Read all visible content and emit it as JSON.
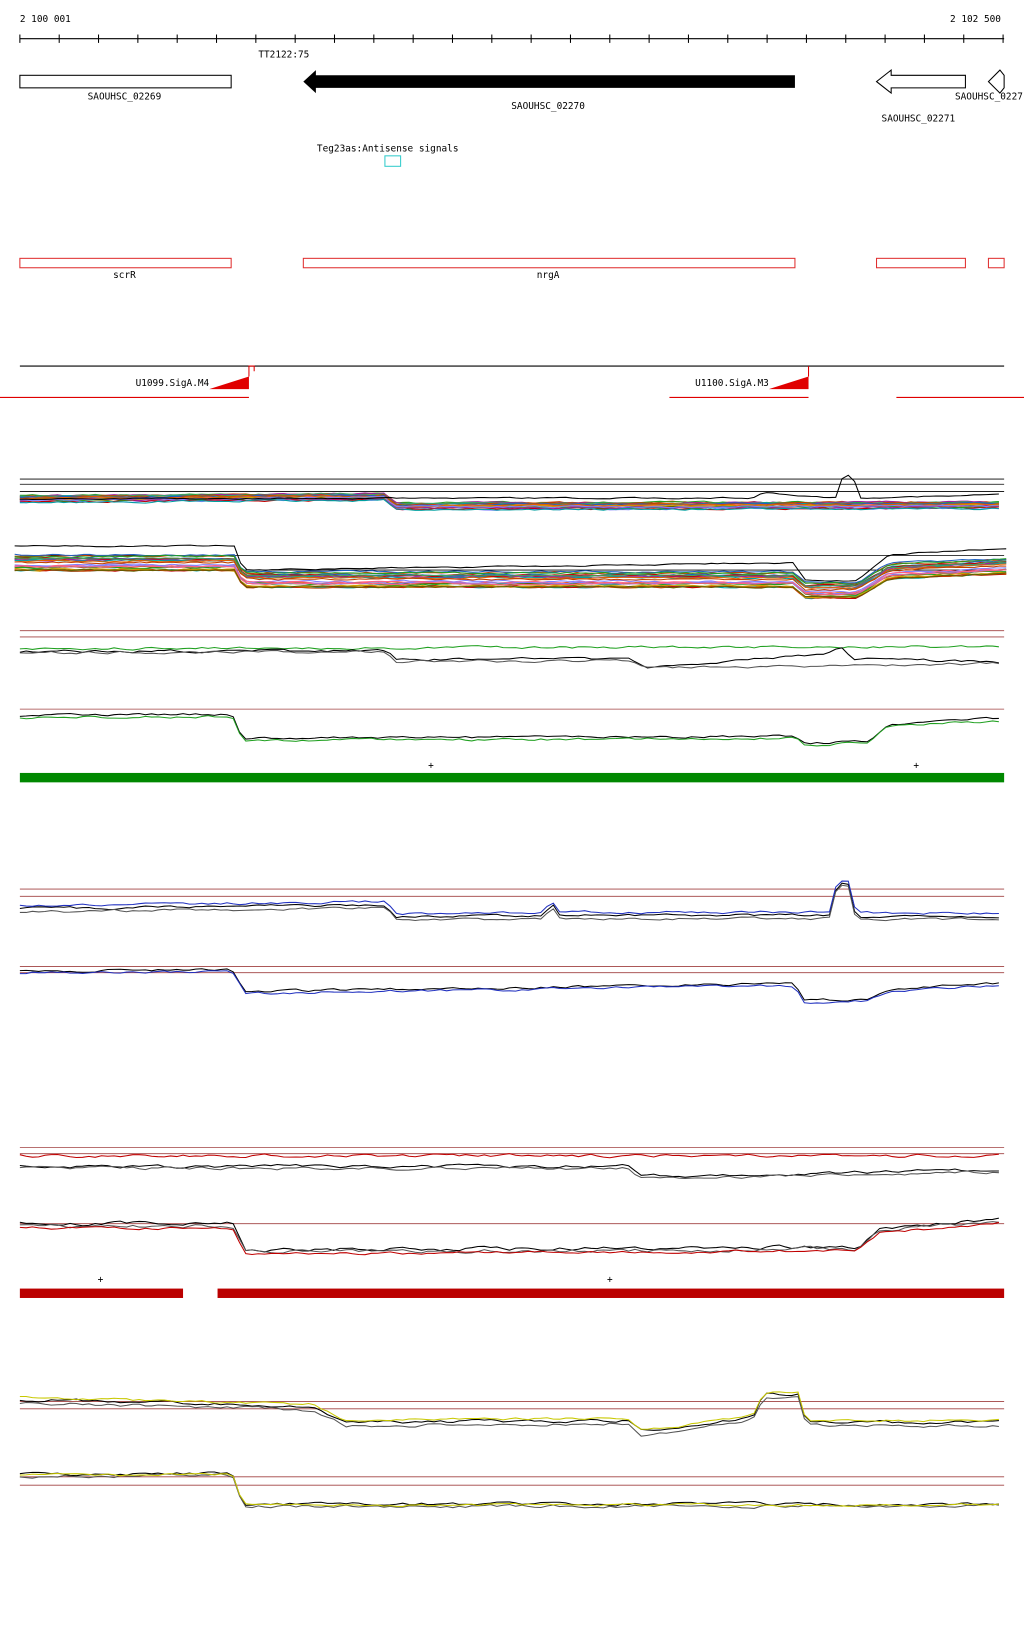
{
  "ruler": {
    "start_label": "2 100 001",
    "end_label": "2 102 500"
  },
  "terminator": "TT2122:75",
  "genes": [
    "SAOUHSC_02269",
    "SAOUHSC_02270",
    "SAOUHSC_02271",
    "SAOUHSC_0227"
  ],
  "antisense_label": "Teg23as:Antisense signals",
  "annotations": [
    "scrR",
    "nrgA"
  ],
  "promoters": [
    "U1099.SigA.M4",
    "U1100.SigA.M3"
  ],
  "strand_marks": [
    "+",
    "+",
    "+",
    "+"
  ]
}
